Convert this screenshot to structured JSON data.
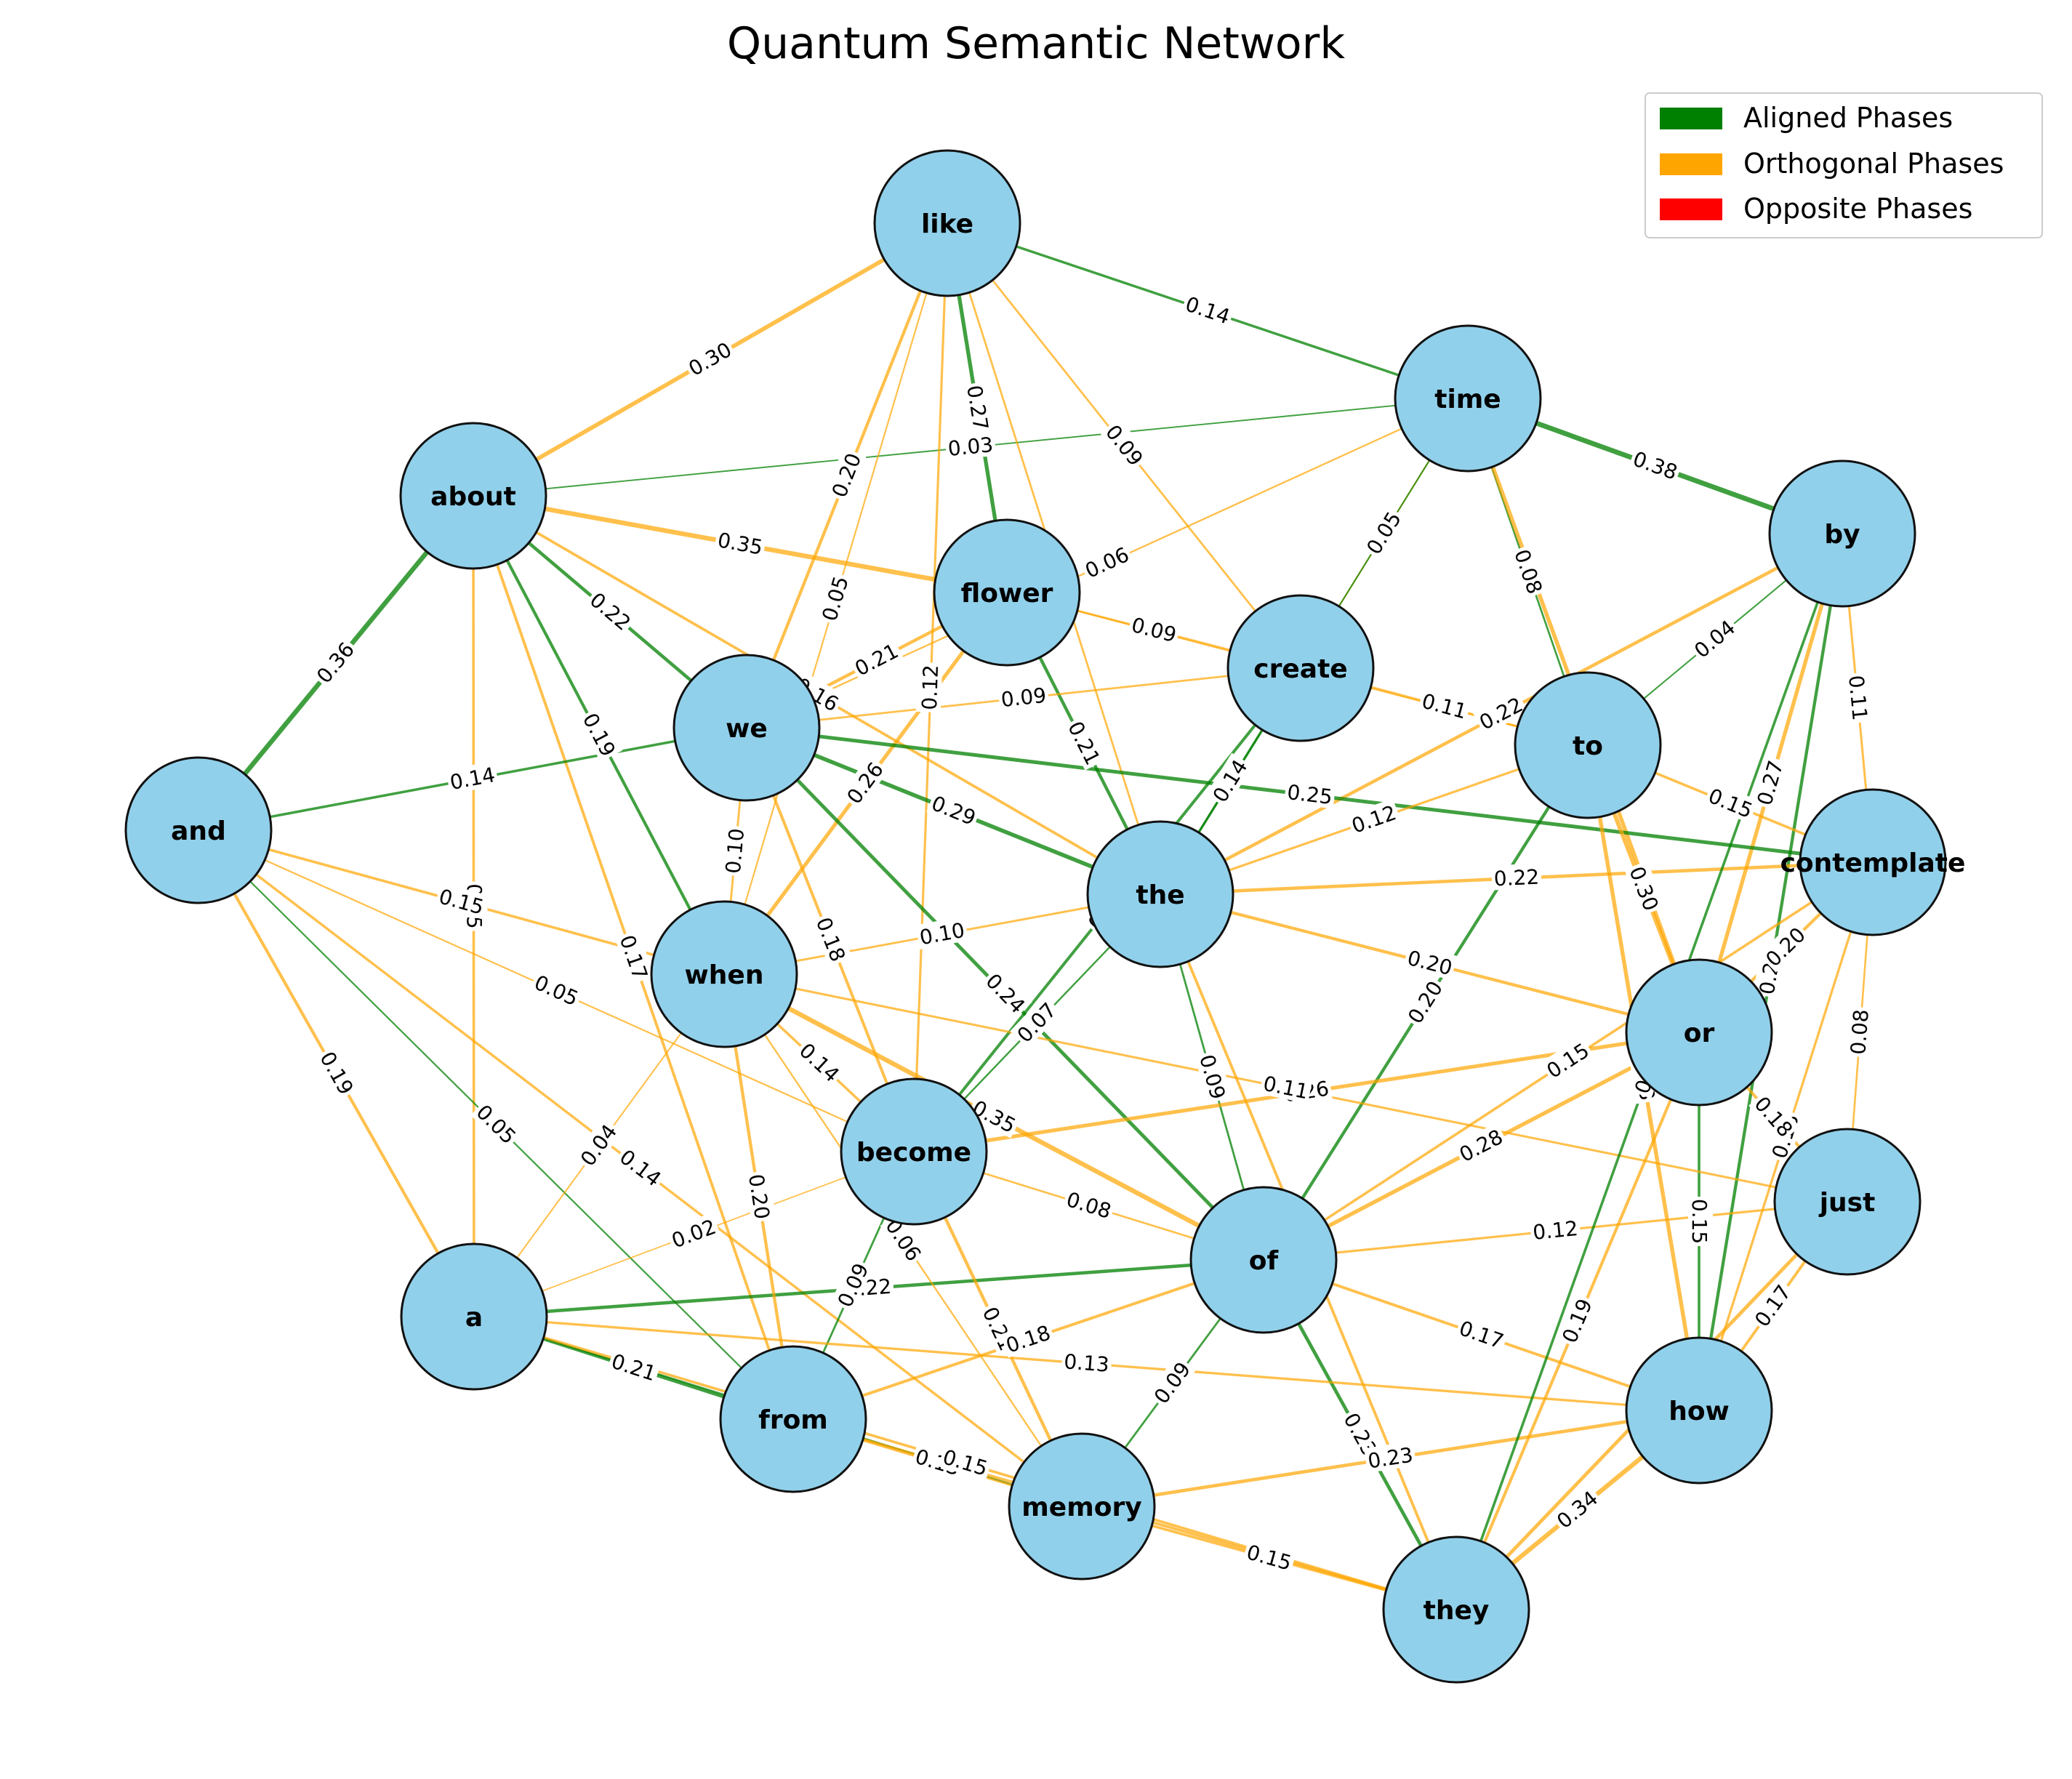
{
  "title": "Quantum Semantic Network",
  "colors": {
    "node_fill": "#91d0ea",
    "node_stroke": "#111111",
    "aligned": "#008000",
    "orthogonal": "#ffa500",
    "opposite": "#ff0000"
  },
  "legend": [
    {
      "label": "Aligned Phases",
      "color": "#008000"
    },
    {
      "label": "Orthogonal Phases",
      "color": "#ffa500"
    },
    {
      "label": "Opposite Phases",
      "color": "#ff0000"
    }
  ],
  "nodes": [
    "like",
    "time",
    "about",
    "by",
    "flower",
    "create",
    "we",
    "to",
    "and",
    "contemplate",
    "the",
    "when",
    "or",
    "become",
    "just",
    "of",
    "a",
    "how",
    "from",
    "memory",
    "they"
  ],
  "edges": [
    {
      "source": "like",
      "target": "time",
      "weight": "0.14",
      "phase": "aligned"
    },
    {
      "source": "like",
      "target": "about",
      "weight": "0.30",
      "phase": "orthogonal"
    },
    {
      "source": "time",
      "target": "by",
      "weight": "0.38",
      "phase": "aligned"
    },
    {
      "source": "about",
      "target": "and",
      "weight": "0.36",
      "phase": "aligned"
    },
    {
      "source": "about",
      "target": "flower",
      "weight": "0.35",
      "phase": "orthogonal"
    },
    {
      "source": "about",
      "target": "we",
      "weight": "0.22",
      "phase": "aligned"
    },
    {
      "source": "about",
      "target": "when",
      "weight": "0.19",
      "phase": "aligned"
    },
    {
      "source": "about",
      "target": "a",
      "weight": "0.15",
      "phase": "orthogonal"
    },
    {
      "source": "about",
      "target": "the",
      "weight": "0.16",
      "phase": "orthogonal"
    },
    {
      "source": "about",
      "target": "time",
      "weight": "0.03",
      "phase": "aligned"
    },
    {
      "source": "about",
      "target": "from",
      "weight": "0.17",
      "phase": "orthogonal"
    },
    {
      "source": "and",
      "target": "a",
      "weight": "0.19",
      "phase": "orthogonal"
    },
    {
      "source": "and",
      "target": "we",
      "weight": "0.14",
      "phase": "aligned"
    },
    {
      "source": "and",
      "target": "when",
      "weight": "0.15",
      "phase": "orthogonal"
    },
    {
      "source": "and",
      "target": "become",
      "weight": "0.05",
      "phase": "orthogonal"
    },
    {
      "source": "and",
      "target": "from",
      "weight": "0.05",
      "phase": "aligned"
    },
    {
      "source": "and",
      "target": "memory",
      "weight": "0.14",
      "phase": "orthogonal"
    },
    {
      "source": "a",
      "target": "from",
      "weight": "0.21",
      "phase": "aligned"
    },
    {
      "source": "a",
      "target": "memory",
      "weight": "0.07",
      "phase": "aligned"
    },
    {
      "source": "a",
      "target": "of",
      "weight": "0.22",
      "phase": "aligned"
    },
    {
      "source": "a",
      "target": "when",
      "weight": "0.04",
      "phase": "orthogonal"
    },
    {
      "source": "memory",
      "target": "they",
      "weight": "0.15",
      "phase": "orthogonal"
    },
    {
      "source": "they",
      "target": "how",
      "weight": "0.34",
      "phase": "orthogonal"
    },
    {
      "source": "how",
      "target": "just",
      "weight": "0.17",
      "phase": "orthogonal"
    },
    {
      "source": "just",
      "target": "contemplate",
      "weight": "0.08",
      "phase": "orthogonal"
    },
    {
      "source": "contemplate",
      "target": "by",
      "weight": "0.11",
      "phase": "orthogonal"
    },
    {
      "source": "like",
      "target": "flower",
      "weight": "0.27",
      "phase": "aligned"
    },
    {
      "source": "like",
      "target": "we",
      "weight": "0.20",
      "phase": "orthogonal"
    },
    {
      "source": "like",
      "target": "the",
      "weight": "0.09",
      "phase": "orthogonal"
    },
    {
      "source": "like",
      "target": "create",
      "weight": "0.09",
      "phase": "orthogonal"
    },
    {
      "source": "like",
      "target": "become",
      "weight": "0.12",
      "phase": "orthogonal"
    },
    {
      "source": "like",
      "target": "when",
      "weight": "0.05",
      "phase": "orthogonal"
    },
    {
      "source": "time",
      "target": "to",
      "weight": "0.08",
      "phase": "aligned"
    },
    {
      "source": "time",
      "target": "create",
      "weight": "0.05",
      "phase": "orthogonal"
    },
    {
      "source": "time",
      "target": "we",
      "weight": "0.06",
      "phase": "orthogonal"
    },
    {
      "source": "time",
      "target": "the",
      "weight": "0.04",
      "phase": "aligned"
    },
    {
      "source": "time",
      "target": "or",
      "weight": "0.28",
      "phase": "orthogonal"
    },
    {
      "source": "by",
      "target": "to",
      "weight": "0.04",
      "phase": "aligned"
    },
    {
      "source": "by",
      "target": "or",
      "weight": "0.27",
      "phase": "orthogonal"
    },
    {
      "source": "by",
      "target": "how",
      "weight": "0.20",
      "phase": "aligned"
    },
    {
      "source": "by",
      "target": "the",
      "weight": "0.22",
      "phase": "orthogonal"
    },
    {
      "source": "flower",
      "target": "create",
      "weight": "0.09",
      "phase": "orthogonal"
    },
    {
      "source": "flower",
      "target": "we",
      "weight": "0.21",
      "phase": "orthogonal"
    },
    {
      "source": "flower",
      "target": "the",
      "weight": "0.21",
      "phase": "aligned"
    },
    {
      "source": "flower",
      "target": "when",
      "weight": "0.26",
      "phase": "orthogonal"
    },
    {
      "source": "flower",
      "target": "to",
      "weight": "0.04",
      "phase": "orthogonal"
    },
    {
      "source": "create",
      "target": "the",
      "weight": "0.14",
      "phase": "aligned"
    },
    {
      "source": "create",
      "target": "to",
      "weight": "0.11",
      "phase": "orthogonal"
    },
    {
      "source": "create",
      "target": "we",
      "weight": "0.09",
      "phase": "orthogonal"
    },
    {
      "source": "create",
      "target": "become",
      "weight": "0.18",
      "phase": "aligned"
    },
    {
      "source": "we",
      "target": "when",
      "weight": "0.10",
      "phase": "orthogonal"
    },
    {
      "source": "we",
      "target": "the",
      "weight": "0.29",
      "phase": "aligned"
    },
    {
      "source": "we",
      "target": "become",
      "weight": "0.18",
      "phase": "orthogonal"
    },
    {
      "source": "we",
      "target": "contemplate",
      "weight": "0.25",
      "phase": "aligned"
    },
    {
      "source": "we",
      "target": "of",
      "weight": "0.24",
      "phase": "aligned"
    },
    {
      "source": "to",
      "target": "or",
      "weight": "0.30",
      "phase": "orthogonal"
    },
    {
      "source": "to",
      "target": "the",
      "weight": "0.12",
      "phase": "orthogonal"
    },
    {
      "source": "to",
      "target": "contemplate",
      "weight": "0.15",
      "phase": "orthogonal"
    },
    {
      "source": "to",
      "target": "of",
      "weight": "0.20",
      "phase": "aligned"
    },
    {
      "source": "to",
      "target": "how",
      "weight": "0.28",
      "phase": "orthogonal"
    },
    {
      "source": "contemplate",
      "target": "or",
      "weight": "0.20",
      "phase": "orthogonal"
    },
    {
      "source": "contemplate",
      "target": "the",
      "weight": "0.22",
      "phase": "orthogonal"
    },
    {
      "source": "contemplate",
      "target": "of",
      "weight": "0.15",
      "phase": "orthogonal"
    },
    {
      "source": "contemplate",
      "target": "how",
      "weight": "0.13",
      "phase": "orthogonal"
    },
    {
      "source": "the",
      "target": "when",
      "weight": "0.10",
      "phase": "orthogonal"
    },
    {
      "source": "the",
      "target": "become",
      "weight": "0.07",
      "phase": "aligned"
    },
    {
      "source": "the",
      "target": "of",
      "weight": "0.09",
      "phase": "aligned"
    },
    {
      "source": "the",
      "target": "or",
      "weight": "0.20",
      "phase": "orthogonal"
    },
    {
      "source": "the",
      "target": "they",
      "weight": "0.17",
      "phase": "orthogonal"
    },
    {
      "source": "when",
      "target": "become",
      "weight": "0.14",
      "phase": "orthogonal"
    },
    {
      "source": "when",
      "target": "from",
      "weight": "0.20",
      "phase": "orthogonal"
    },
    {
      "source": "when",
      "target": "of",
      "weight": "0.35",
      "phase": "orthogonal"
    },
    {
      "source": "when",
      "target": "memory",
      "weight": "0.06",
      "phase": "orthogonal"
    },
    {
      "source": "or",
      "target": "just",
      "weight": "0.18",
      "phase": "orthogonal"
    },
    {
      "source": "or",
      "target": "how",
      "weight": "0.15",
      "phase": "aligned"
    },
    {
      "source": "or",
      "target": "of",
      "weight": "0.28",
      "phase": "orthogonal"
    },
    {
      "source": "or",
      "target": "they",
      "weight": "0.19",
      "phase": "orthogonal"
    },
    {
      "source": "or",
      "target": "become",
      "weight": "0.26",
      "phase": "orthogonal"
    },
    {
      "source": "become",
      "target": "from",
      "weight": "0.09",
      "phase": "aligned"
    },
    {
      "source": "become",
      "target": "memory",
      "weight": "0.21",
      "phase": "orthogonal"
    },
    {
      "source": "become",
      "target": "of",
      "weight": "0.08",
      "phase": "orthogonal"
    },
    {
      "source": "become",
      "target": "a",
      "weight": "0.02",
      "phase": "orthogonal"
    },
    {
      "source": "just",
      "target": "of",
      "weight": "0.12",
      "phase": "orthogonal"
    },
    {
      "source": "just",
      "target": "they",
      "weight": "0.24",
      "phase": "orthogonal"
    },
    {
      "source": "just",
      "target": "when",
      "weight": "0.11",
      "phase": "orthogonal"
    },
    {
      "source": "of",
      "target": "memory",
      "weight": "0.09",
      "phase": "aligned"
    },
    {
      "source": "of",
      "target": "they",
      "weight": "0.23",
      "phase": "aligned"
    },
    {
      "source": "of",
      "target": "how",
      "weight": "0.17",
      "phase": "orthogonal"
    },
    {
      "source": "of",
      "target": "from",
      "weight": "0.18",
      "phase": "orthogonal"
    },
    {
      "source": "how",
      "target": "memory",
      "weight": "0.23",
      "phase": "orthogonal"
    },
    {
      "source": "how",
      "target": "a",
      "weight": "0.13",
      "phase": "orthogonal"
    },
    {
      "source": "from",
      "target": "memory",
      "weight": "0.13",
      "phase": "orthogonal"
    },
    {
      "source": "from",
      "target": "they",
      "weight": "0.17",
      "phase": "orthogonal"
    },
    {
      "source": "they",
      "target": "a",
      "weight": "0.15",
      "phase": "orthogonal"
    },
    {
      "source": "they",
      "target": "by",
      "weight": "0.15",
      "phase": "aligned"
    }
  ]
}
